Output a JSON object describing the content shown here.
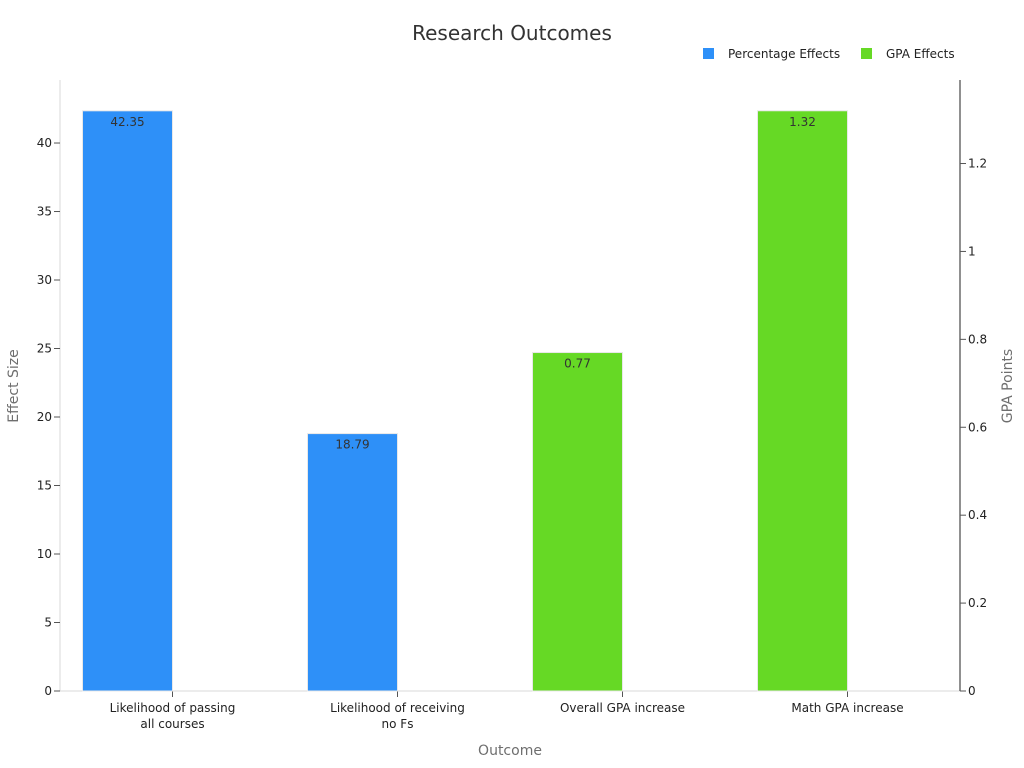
{
  "chart_data": {
    "type": "bar",
    "title": "Research Outcomes",
    "xlabel": "Outcome",
    "ylabel": "Effect Size",
    "y2label": "GPA Points",
    "categories": [
      [
        "Likelihood of passing",
        "all courses"
      ],
      [
        "Likelihood of receiving",
        "no Fs"
      ],
      [
        "Overall GPA increase"
      ],
      [
        "Math GPA increase"
      ]
    ],
    "series": [
      {
        "name": "Percentage Effects",
        "axis": "left",
        "color": "#2e90f8",
        "values": [
          42.35,
          18.79,
          null,
          null
        ],
        "labels": [
          "42.35",
          "18.79",
          "",
          ""
        ]
      },
      {
        "name": "GPA Effects",
        "axis": "right",
        "color": "#66d925",
        "values": [
          null,
          null,
          0.77,
          1.32
        ],
        "labels": [
          "",
          "",
          "0.77",
          "1.32"
        ]
      }
    ],
    "ylim": [
      0,
      44.6
    ],
    "y2lim": [
      0,
      1.39
    ],
    "yticks": [
      0,
      5,
      10,
      15,
      20,
      25,
      30,
      35,
      40
    ],
    "yticklabels": [
      "0",
      "5",
      "10",
      "15",
      "20",
      "25",
      "30",
      "35",
      "40"
    ],
    "y2ticks": [
      0,
      0.2,
      0.4,
      0.6,
      0.8,
      1,
      1.2
    ],
    "y2ticklabels": [
      "0",
      "0.2",
      "0.4",
      "0.6",
      "0.8",
      "1",
      "1.2"
    ],
    "legend_position": "top-right",
    "grid": false
  }
}
